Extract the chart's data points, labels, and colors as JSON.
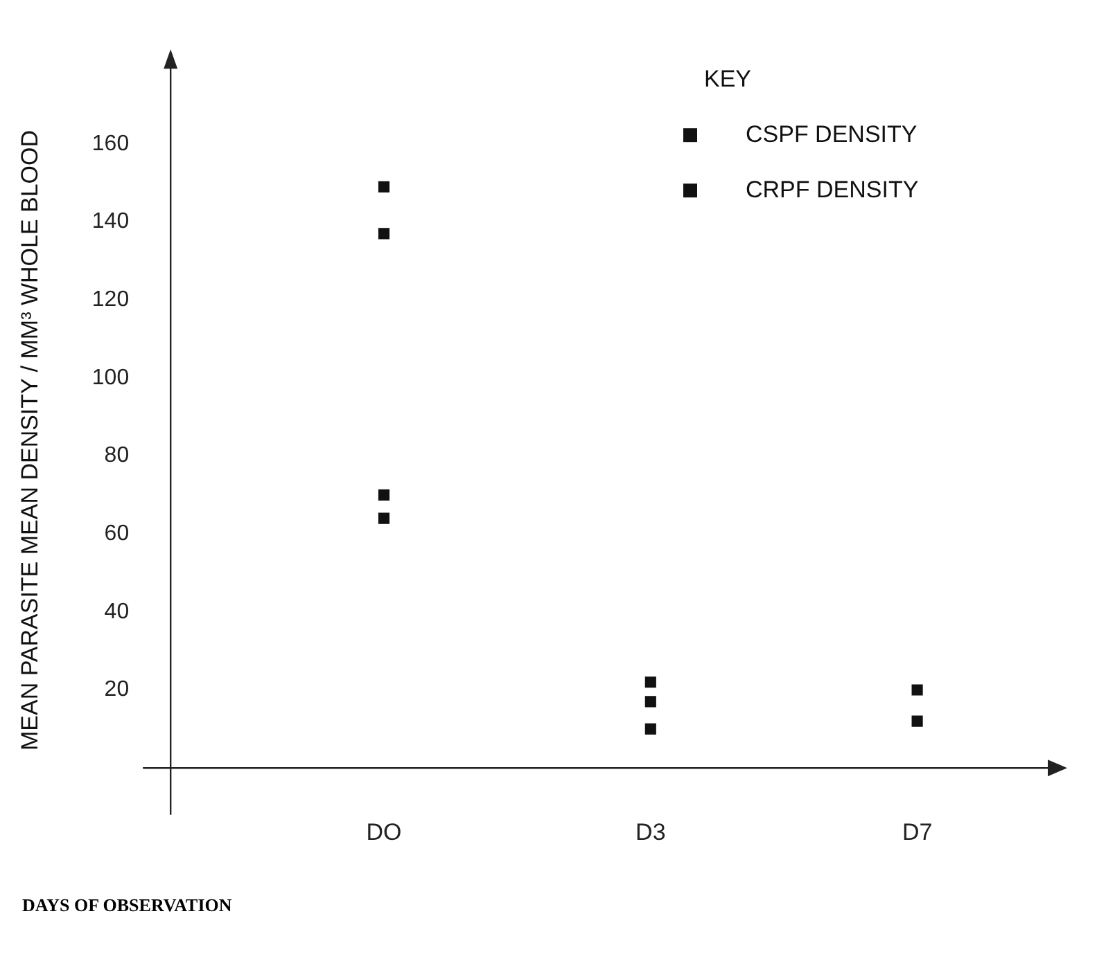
{
  "chart_data": {
    "type": "scatter",
    "categories": [
      "DO",
      "D3",
      "D7"
    ],
    "xlabel": "DAYS OF OBSERVATION",
    "ylabel": "MEAN PARASITE MEAN DENSITY / MM³ WHOLE BLOOD",
    "legend_title": "KEY",
    "legend": "top right",
    "marker": "square",
    "grid": false,
    "ylim": [
      -12,
      180
    ],
    "yticks": [
      20,
      40,
      60,
      80,
      100,
      120,
      140,
      160
    ],
    "series": [
      {
        "name": "CSPF DENSITY",
        "color": "#111111",
        "x": [
          "DO",
          "DO",
          "D3",
          "D3",
          "D7"
        ],
        "values": [
          149,
          70,
          22,
          17,
          20
        ]
      },
      {
        "name": "CRPF DENSITY",
        "color": "#111111",
        "x": [
          "DO",
          "DO",
          "D3",
          "D7"
        ],
        "values": [
          137,
          64,
          10,
          12
        ]
      }
    ]
  }
}
